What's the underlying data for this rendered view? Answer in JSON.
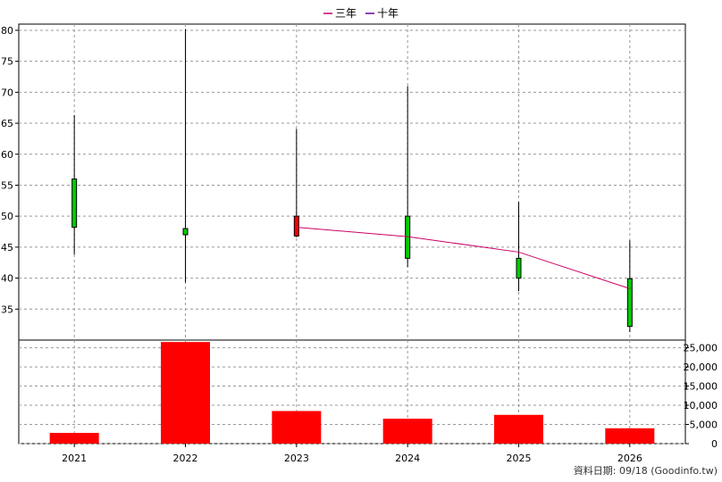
{
  "chart_data": {
    "type": "candlestick-with-volume",
    "legend": [
      {
        "label": "三年",
        "color": "#cc0066"
      },
      {
        "label": "十年",
        "color": "#660099"
      }
    ],
    "price_axis": {
      "min": 30,
      "max": 81,
      "ticks": [
        "35",
        "40",
        "45",
        "50",
        "55",
        "60",
        "65",
        "70",
        "75",
        "80"
      ]
    },
    "volume_axis": {
      "min": 0,
      "max": 27000,
      "ticks": [
        "0",
        "5,000",
        "10,000",
        "15,000",
        "20,000",
        "25,000"
      ]
    },
    "categories": [
      "2021",
      "2022",
      "2023",
      "2024",
      "2025",
      "2026"
    ],
    "candles": [
      {
        "year": "2021",
        "open": 48.2,
        "close": 56.0,
        "high": 66.3,
        "low": 43.8
      },
      {
        "year": "2022",
        "open": 47.0,
        "close": 48.0,
        "high": 80.2,
        "low": 39.3
      },
      {
        "year": "2023",
        "open": 50.0,
        "close": 46.8,
        "high": 64.1,
        "low": 46.6
      },
      {
        "year": "2024",
        "open": 43.2,
        "close": 50.0,
        "high": 71.0,
        "low": 41.8
      },
      {
        "year": "2025",
        "open": 40.0,
        "close": 43.2,
        "high": 52.3,
        "low": 37.9
      },
      {
        "year": "2026",
        "open": 32.2,
        "close": 39.9,
        "high": 46.1,
        "low": 31.3
      }
    ],
    "up_color": "#00cc00",
    "down_color": "#ff0000",
    "three_year_line": [
      {
        "year": "2023",
        "value": 48.2
      },
      {
        "year": "2024",
        "value": 46.7
      },
      {
        "year": "2025",
        "value": 44.2
      },
      {
        "year": "2026",
        "value": 38.3
      }
    ],
    "volume": [
      {
        "year": "2021",
        "value": 2800
      },
      {
        "year": "2022",
        "value": 26500
      },
      {
        "year": "2023",
        "value": 8500
      },
      {
        "year": "2024",
        "value": 6500
      },
      {
        "year": "2025",
        "value": 7500
      },
      {
        "year": "2026",
        "value": 4000
      }
    ],
    "volume_color": "#ff0000",
    "grid": true
  },
  "credit": "資料日期: 09/18  (Goodinfo.tw)"
}
